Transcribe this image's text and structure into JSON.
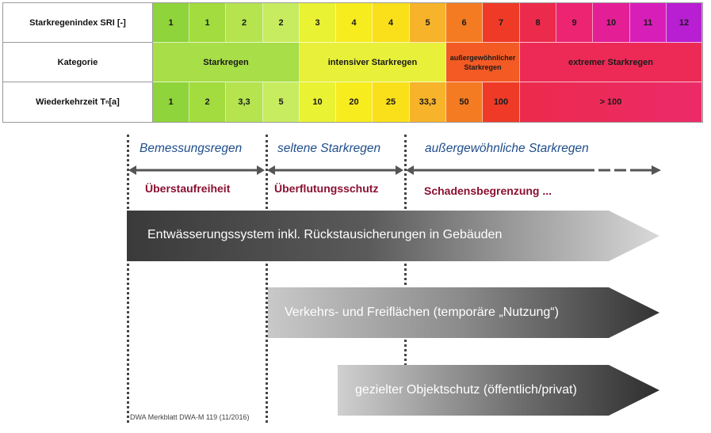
{
  "table": {
    "row_labels": {
      "sri": "Starkregenindex SRI [-]",
      "category": "Kategorie",
      "return_period": "Wiederkehrzeit T",
      "return_period_sub": "n",
      "return_period_unit": " [a]"
    },
    "sri_values": [
      "1",
      "1",
      "2",
      "2",
      "3",
      "4",
      "4",
      "5",
      "6",
      "7",
      "8",
      "9",
      "10",
      "11",
      "12"
    ],
    "categories": [
      "Starkregen",
      "intensiver Starkregen",
      "außergewöhnlicher Starkregen",
      "extremer Starkregen"
    ],
    "return_periods": [
      "1",
      "2",
      "3,3",
      "5",
      "10",
      "20",
      "25",
      "33,3",
      "50",
      "100",
      "> 100"
    ],
    "colors": [
      "#8fd43a",
      "#a2dc3e",
      "#b5e44f",
      "#c8ec5f",
      "#e9f233",
      "#f7ec1e",
      "#f9e01a",
      "#f7b32a",
      "#f47b22",
      "#ef3a28",
      "#ec2a4c",
      "#ec2471",
      "#e41e95",
      "#d81eb8",
      "#b81ed2"
    ],
    "category_colors": [
      "#a8de47",
      "#e8f03a",
      "#f35a24",
      "#ec2a55"
    ]
  },
  "diagram": {
    "zones": [
      "Bemessungsregen",
      "seltene Starkregen",
      "außergewöhnliche Starkregen"
    ],
    "goals": [
      "Überstaufreiheit",
      "Überflutungsschutz",
      "Schadensbegrenzung ..."
    ],
    "bands": [
      "Entwässerungssystem inkl. Rückstausicherungen in Gebäuden",
      "Verkehrs- und Freiflächen (temporäre „Nutzung“)",
      "gezielter Objektschutz (öffentlich/privat)"
    ],
    "source": "DWA Merkblatt DWA-M 119 (11/2016)",
    "colors": {
      "zone_title": "#1f4e8c",
      "goal": "#8b1032",
      "band_dark": "#3a3a3a"
    }
  }
}
